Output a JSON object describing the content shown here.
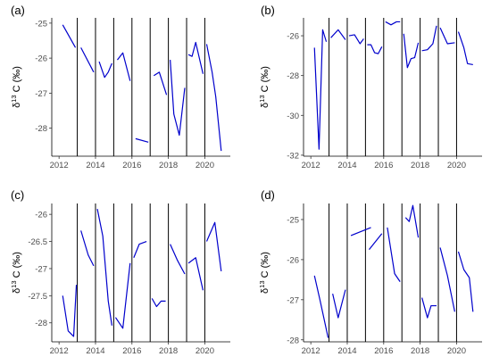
{
  "colors": {
    "series": "#0000cc",
    "vline": "#000000",
    "axis": "#000000",
    "tick_text": "#4d4d4d"
  },
  "ylabel": {
    "prefix": "δ",
    "sup": "13",
    "suffix": " C (‰)"
  },
  "chart_data": [
    {
      "label": "(a)",
      "type": "line",
      "xlim": [
        2011.6,
        2021.4
      ],
      "ylim": [
        -28.8,
        -24.85
      ],
      "xticks": [
        2012,
        2014,
        2016,
        2018,
        2020
      ],
      "yticks": [
        -25,
        -26,
        -27,
        -28
      ],
      "vlines": [
        2013,
        2014,
        2015,
        2016,
        2017,
        2018,
        2019,
        2020
      ],
      "segments": [
        {
          "x": [
            2012.2,
            2012.9
          ],
          "y": [
            -25.05,
            -25.7
          ]
        },
        {
          "x": [
            2013.2,
            2013.9
          ],
          "y": [
            -25.7,
            -26.4
          ]
        },
        {
          "x": [
            2014.2,
            2014.5,
            2014.7,
            2014.9
          ],
          "y": [
            -26.1,
            -26.55,
            -26.4,
            -26.15
          ]
        },
        {
          "x": [
            2015.2,
            2015.5,
            2015.9
          ],
          "y": [
            -26.05,
            -25.85,
            -26.65
          ]
        },
        {
          "x": [
            2016.2,
            2016.9
          ],
          "y": [
            -28.3,
            -28.4
          ]
        },
        {
          "x": [
            2017.2,
            2017.5,
            2017.9
          ],
          "y": [
            -26.5,
            -26.4,
            -27.05
          ]
        },
        {
          "x": [
            2018.1,
            2018.3,
            2018.6,
            2018.9
          ],
          "y": [
            -26.05,
            -27.6,
            -28.2,
            -26.85
          ]
        },
        {
          "x": [
            2019.1,
            2019.3,
            2019.5,
            2019.9
          ],
          "y": [
            -25.9,
            -25.95,
            -25.55,
            -26.45
          ]
        },
        {
          "x": [
            2020.1,
            2020.4,
            2020.6,
            2020.9
          ],
          "y": [
            -25.6,
            -26.4,
            -27.1,
            -28.65
          ]
        }
      ]
    },
    {
      "label": "(b)",
      "type": "line",
      "xlim": [
        2011.6,
        2021.4
      ],
      "ylim": [
        -32.05,
        -25.1
      ],
      "xticks": [
        2012,
        2014,
        2016,
        2018,
        2020
      ],
      "yticks": [
        -26,
        -28,
        -30,
        -32
      ],
      "vlines": [
        2013,
        2014,
        2015,
        2016,
        2017,
        2018,
        2019,
        2020
      ],
      "segments": [
        {
          "x": [
            2012.2,
            2012.45,
            2012.65,
            2012.85
          ],
          "y": [
            -26.6,
            -31.7,
            -25.7,
            -26.3
          ]
        },
        {
          "x": [
            2013.1,
            2013.5,
            2013.9
          ],
          "y": [
            -26.1,
            -25.7,
            -26.2
          ]
        },
        {
          "x": [
            2014.1,
            2014.4,
            2014.7,
            2014.9
          ],
          "y": [
            -26.0,
            -25.95,
            -26.4,
            -26.15
          ]
        },
        {
          "x": [
            2015.1,
            2015.3,
            2015.5,
            2015.7,
            2015.9
          ],
          "y": [
            -26.45,
            -26.45,
            -26.85,
            -26.9,
            -26.55
          ]
        },
        {
          "x": [
            2016.1,
            2016.4,
            2016.7,
            2016.9
          ],
          "y": [
            -25.3,
            -25.45,
            -25.3,
            -25.3
          ]
        },
        {
          "x": [
            2017.1,
            2017.3,
            2017.5,
            2017.7,
            2017.9
          ],
          "y": [
            -25.9,
            -27.6,
            -27.15,
            -27.1,
            -26.35
          ]
        },
        {
          "x": [
            2018.1,
            2018.4,
            2018.7,
            2018.9
          ],
          "y": [
            -26.75,
            -26.7,
            -26.4,
            -25.5
          ]
        },
        {
          "x": [
            2019.1,
            2019.5,
            2019.9
          ],
          "y": [
            -25.6,
            -26.4,
            -26.35
          ]
        },
        {
          "x": [
            2020.1,
            2020.4,
            2020.6,
            2020.9
          ],
          "y": [
            -25.8,
            -26.6,
            -27.4,
            -27.45
          ]
        }
      ]
    },
    {
      "label": "(c)",
      "type": "line",
      "xlim": [
        2011.6,
        2021.4
      ],
      "ylim": [
        -28.35,
        -25.8
      ],
      "xticks": [
        2012,
        2014,
        2016,
        2018,
        2020
      ],
      "yticks": [
        -26,
        -26.5,
        -27,
        -27.5,
        -28
      ],
      "ytick_labels": [
        "-26",
        "-26.5",
        "-27",
        "-27.5",
        "-28"
      ],
      "vlines": [
        2013,
        2014,
        2015,
        2016,
        2017,
        2018,
        2019,
        2020
      ],
      "segments": [
        {
          "x": [
            2012.2,
            2012.5,
            2012.8,
            2012.95
          ],
          "y": [
            -27.5,
            -28.15,
            -28.25,
            -27.3
          ]
        },
        {
          "x": [
            2013.2,
            2013.6,
            2013.9
          ],
          "y": [
            -26.3,
            -26.75,
            -26.95
          ]
        },
        {
          "x": [
            2014.1,
            2014.4,
            2014.7,
            2014.9
          ],
          "y": [
            -25.9,
            -26.4,
            -27.6,
            -28.05
          ]
        },
        {
          "x": [
            2015.1,
            2015.5,
            2015.9
          ],
          "y": [
            -27.9,
            -28.1,
            -26.9
          ]
        },
        {
          "x": [
            2016.1,
            2016.4,
            2016.8
          ],
          "y": [
            -26.8,
            -26.55,
            -26.5
          ]
        },
        {
          "x": [
            2017.1,
            2017.35,
            2017.6,
            2017.85
          ],
          "y": [
            -27.55,
            -27.7,
            -27.6,
            -27.6
          ]
        },
        {
          "x": [
            2018.1,
            2018.5,
            2018.9
          ],
          "y": [
            -26.55,
            -26.85,
            -27.1
          ]
        },
        {
          "x": [
            2019.1,
            2019.5,
            2019.9
          ],
          "y": [
            -26.9,
            -26.8,
            -27.4
          ]
        },
        {
          "x": [
            2020.1,
            2020.55,
            2020.9
          ],
          "y": [
            -26.5,
            -26.15,
            -27.05
          ]
        }
      ]
    },
    {
      "label": "(d)",
      "type": "line",
      "xlim": [
        2011.6,
        2021.4
      ],
      "ylim": [
        -28.05,
        -24.6
      ],
      "xticks": [
        2012,
        2014,
        2016,
        2018,
        2020
      ],
      "yticks": [
        -25,
        -26,
        -27,
        -28
      ],
      "vlines": [
        2013,
        2014,
        2015,
        2016,
        2017,
        2018,
        2019,
        2020
      ],
      "segments": [
        {
          "x": [
            2012.2,
            2012.5,
            2012.95
          ],
          "y": [
            -26.4,
            -27.0,
            -27.95
          ]
        },
        {
          "x": [
            2013.2,
            2013.5,
            2013.9
          ],
          "y": [
            -26.85,
            -27.45,
            -26.75
          ]
        },
        {
          "x": [
            2014.2,
            2015.3
          ],
          "y": [
            -25.4,
            -25.2
          ]
        },
        {
          "x": [
            2015.2,
            2015.9
          ],
          "y": [
            -25.75,
            -25.35
          ]
        },
        {
          "x": [
            2016.2,
            2016.6,
            2016.9
          ],
          "y": [
            -25.2,
            -26.35,
            -26.55
          ]
        },
        {
          "x": [
            2017.2,
            2017.4,
            2017.6,
            2017.9
          ],
          "y": [
            -24.95,
            -25.05,
            -24.65,
            -25.45
          ]
        },
        {
          "x": [
            2018.1,
            2018.4,
            2018.6,
            2018.9
          ],
          "y": [
            -26.95,
            -27.45,
            -27.15,
            -27.15
          ]
        },
        {
          "x": [
            2019.1,
            2019.5,
            2019.9
          ],
          "y": [
            -25.7,
            -26.4,
            -27.3
          ]
        },
        {
          "x": [
            2020.1,
            2020.4,
            2020.7,
            2020.9
          ],
          "y": [
            -25.8,
            -26.25,
            -26.45,
            -27.3
          ]
        }
      ]
    }
  ]
}
